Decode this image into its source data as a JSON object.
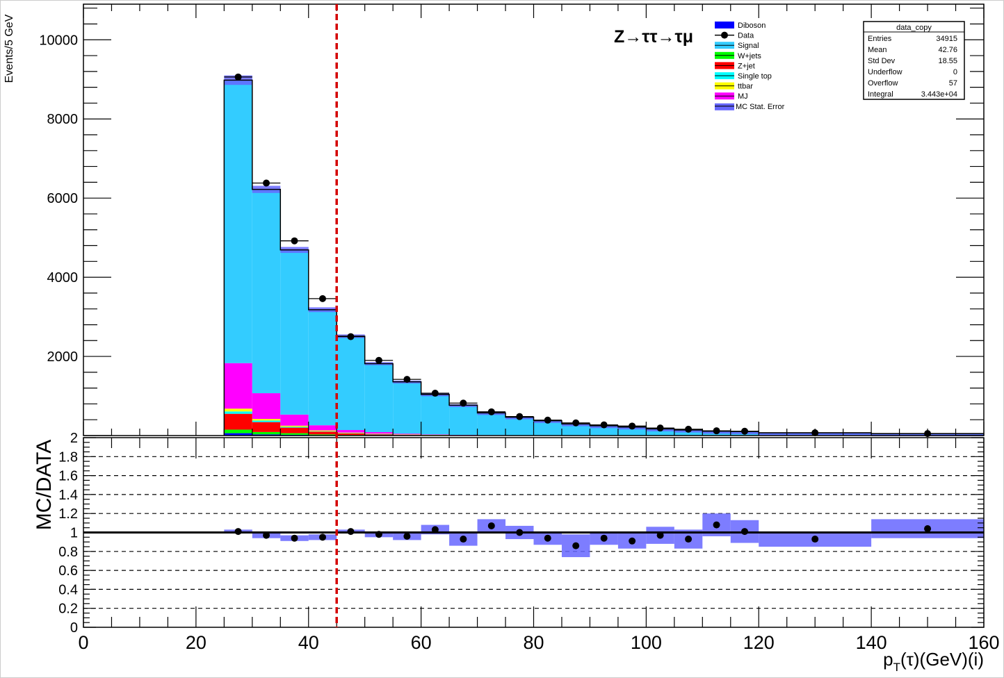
{
  "colors": {
    "Signal": "#33ccff",
    "MJ": "#ff00ff",
    "ttbar": "#ffff00",
    "Single top": "#00ffff",
    "Z+jet": "#ff0000",
    "W+jets": "#00ff00",
    "Diboson": "#0000ff",
    "MC Stat. Error": "#6666ff",
    "cut_line": "#d40000"
  },
  "chart_data": [
    {
      "type": "bar",
      "name": "top",
      "title": "Z→ττ→τμ",
      "ylabel": "Events/5 GeV",
      "xlabel": "",
      "xlim": [
        0,
        160
      ],
      "ylim": [
        0,
        10900
      ],
      "yticks": [
        2000,
        4000,
        6000,
        8000,
        10000
      ],
      "ytick_labels": [
        "2000",
        "4000",
        "6000",
        "8000",
        "10000"
      ],
      "bin_edges": [
        25,
        30,
        35,
        40,
        45,
        50,
        55,
        60,
        65,
        70,
        75,
        80,
        85,
        90,
        95,
        100,
        105,
        110,
        115,
        120,
        140,
        160
      ],
      "series": [
        {
          "name": "Diboson",
          "values": [
            60,
            30,
            20,
            10,
            5,
            3,
            2,
            1,
            1,
            0,
            0,
            0,
            0,
            0,
            0,
            0,
            0,
            0,
            0,
            0,
            0
          ]
        },
        {
          "name": "W+jets",
          "values": [
            90,
            60,
            40,
            20,
            10,
            6,
            4,
            2,
            1,
            1,
            0,
            0,
            0,
            0,
            0,
            0,
            0,
            0,
            0,
            0,
            0
          ]
        },
        {
          "name": "Z+jet",
          "values": [
            400,
            250,
            140,
            70,
            40,
            25,
            15,
            10,
            5,
            4,
            2,
            2,
            1,
            1,
            1,
            0,
            0,
            0,
            0,
            0,
            0
          ]
        },
        {
          "name": "Single top",
          "values": [
            60,
            40,
            20,
            10,
            5,
            3,
            2,
            2,
            1,
            1,
            0,
            0,
            0,
            0,
            0,
            0,
            0,
            0,
            0,
            0,
            0
          ]
        },
        {
          "name": "ttbar",
          "values": [
            70,
            40,
            30,
            20,
            15,
            10,
            5,
            4,
            3,
            2,
            1,
            1,
            1,
            0,
            0,
            0,
            0,
            0,
            0,
            0,
            0
          ]
        },
        {
          "name": "MJ",
          "values": [
            1150,
            650,
            280,
            130,
            65,
            40,
            20,
            10,
            5,
            4,
            2,
            2,
            1,
            1,
            0,
            0,
            0,
            0,
            0,
            0,
            0
          ]
        },
        {
          "name": "Signal",
          "values": [
            7150,
            5150,
            4160,
            2920,
            2370,
            1730,
            1310,
            1010,
            753,
            560,
            460,
            370,
            290,
            245,
            213,
            168,
            140,
            110,
            100,
            70,
            50
          ]
        }
      ],
      "mc_stat_error": [
        120,
        90,
        75,
        60,
        45,
        38,
        30,
        25,
        22,
        19,
        17,
        15,
        14,
        12,
        11,
        10,
        9,
        8,
        8,
        5,
        3
      ],
      "data": {
        "name": "Data",
        "x": [
          27.5,
          32.5,
          37.5,
          42.5,
          47.5,
          52.5,
          57.5,
          62.5,
          67.5,
          72.5,
          77.5,
          82.5,
          87.5,
          92.5,
          97.5,
          102.5,
          107.5,
          112.5,
          117.5,
          130,
          150
        ],
        "y": [
          9060,
          6380,
          4920,
          3460,
          2500,
          1900,
          1420,
          1070,
          820,
          600,
          480,
          390,
          320,
          270,
          240,
          190,
          160,
          120,
          110,
          70,
          50
        ]
      },
      "cut_x": 45,
      "legend_entries": [
        "Diboson",
        "Data",
        "Signal",
        "W+jets",
        "Z+jet",
        "Single top",
        "ttbar",
        "MJ",
        "MC Stat. Error"
      ],
      "legend_placement": "top-right",
      "stats_box": {
        "title": "data_copy",
        "rows": [
          {
            "label": "Entries",
            "value": "34915"
          },
          {
            "label": "Mean",
            "value": "42.76"
          },
          {
            "label": "Std Dev",
            "value": "18.55"
          },
          {
            "label": "Underflow",
            "value": "0"
          },
          {
            "label": "Overflow",
            "value": "57"
          },
          {
            "label": "Integral",
            "value": "3.443e+04"
          }
        ]
      }
    },
    {
      "type": "scatter",
      "name": "ratio",
      "ylabel": "MC/DATA",
      "xlabel": "p_T(τ)(GeV)(i)",
      "xlim": [
        0,
        160
      ],
      "ylim": [
        0,
        2
      ],
      "yticks": [
        0,
        0.2,
        0.4,
        0.6,
        0.8,
        1,
        1.2,
        1.4,
        1.6,
        1.8,
        2
      ],
      "ytick_labels": [
        "0",
        "0.2",
        "0.4",
        "0.6",
        "0.8",
        "1",
        "1.2",
        "1.4",
        "1.6",
        "1.8",
        "2"
      ],
      "xticks": [
        0,
        20,
        40,
        60,
        80,
        100,
        120,
        140,
        160
      ],
      "xtick_labels": [
        "0",
        "20",
        "40",
        "60",
        "80",
        "100",
        "120",
        "140",
        "160"
      ],
      "gridlines_y": [
        0.2,
        0.4,
        0.6,
        0.8,
        1.2,
        1.4,
        1.6,
        1.8
      ],
      "ratio": {
        "x": [
          27.5,
          32.5,
          37.5,
          42.5,
          47.5,
          52.5,
          57.5,
          62.5,
          67.5,
          72.5,
          77.5,
          82.5,
          87.5,
          92.5,
          97.5,
          102.5,
          107.5,
          112.5,
          117.5,
          130,
          150
        ],
        "y": [
          1.01,
          0.97,
          0.94,
          0.95,
          1.01,
          0.98,
          0.96,
          1.03,
          0.93,
          1.07,
          1.0,
          0.94,
          0.86,
          0.94,
          0.91,
          0.97,
          0.93,
          1.08,
          1.01,
          0.93,
          1.04
        ]
      },
      "ratio_error": [
        0.02,
        0.03,
        0.03,
        0.03,
        0.02,
        0.03,
        0.04,
        0.05,
        0.07,
        0.07,
        0.07,
        0.07,
        0.12,
        0.07,
        0.08,
        0.09,
        0.1,
        0.12,
        0.12,
        0.08,
        0.1
      ],
      "cut_x": 45
    }
  ]
}
